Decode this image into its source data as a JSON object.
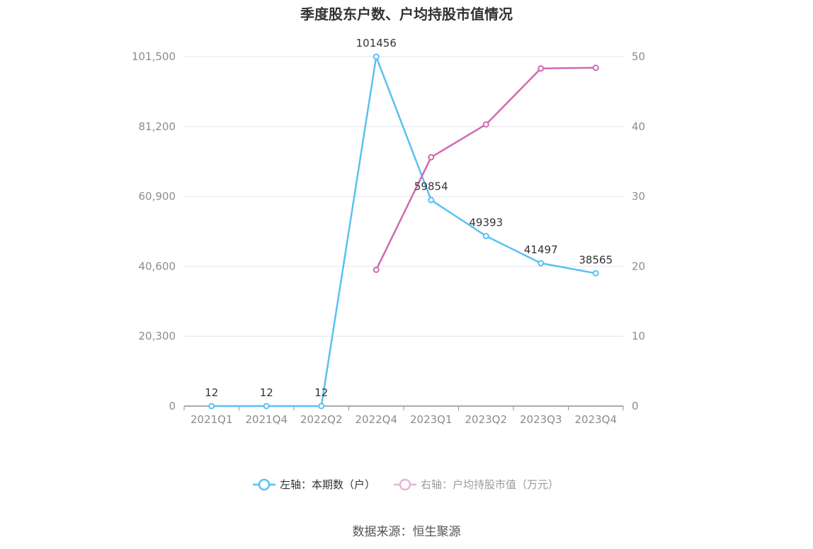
{
  "chart_data": {
    "type": "line",
    "title": "季度股东户数、户均持股市值情况",
    "categories": [
      "2021Q1",
      "2021Q4",
      "2022Q2",
      "2022Q4",
      "2023Q1",
      "2023Q2",
      "2023Q3",
      "2023Q4"
    ],
    "series": [
      {
        "name": "左轴：本期数（户）",
        "axis": "left",
        "color": "#5bc0f0",
        "values": [
          12,
          12,
          12,
          101456,
          59854,
          49393,
          41497,
          38565
        ],
        "labels": [
          "12",
          "12",
          "12",
          "101456",
          "59854",
          "49393",
          "41497",
          "38565"
        ]
      },
      {
        "name": "右轴：户均持股市值（万元）",
        "axis": "right",
        "color": "#d16aae",
        "values": [
          null,
          null,
          null,
          19.5,
          35.6,
          40.3,
          48.3,
          48.4
        ]
      }
    ],
    "left_axis": {
      "min": 0,
      "max": 101500,
      "ticks": [
        "0",
        "20,300",
        "40,600",
        "60,900",
        "81,200",
        "101,500"
      ]
    },
    "right_axis": {
      "min": 0,
      "max": 50,
      "ticks": [
        "0",
        "10",
        "20",
        "30",
        "40",
        "50"
      ]
    },
    "grid": true,
    "legend_position": "bottom"
  },
  "source": "数据来源：恒生聚源"
}
